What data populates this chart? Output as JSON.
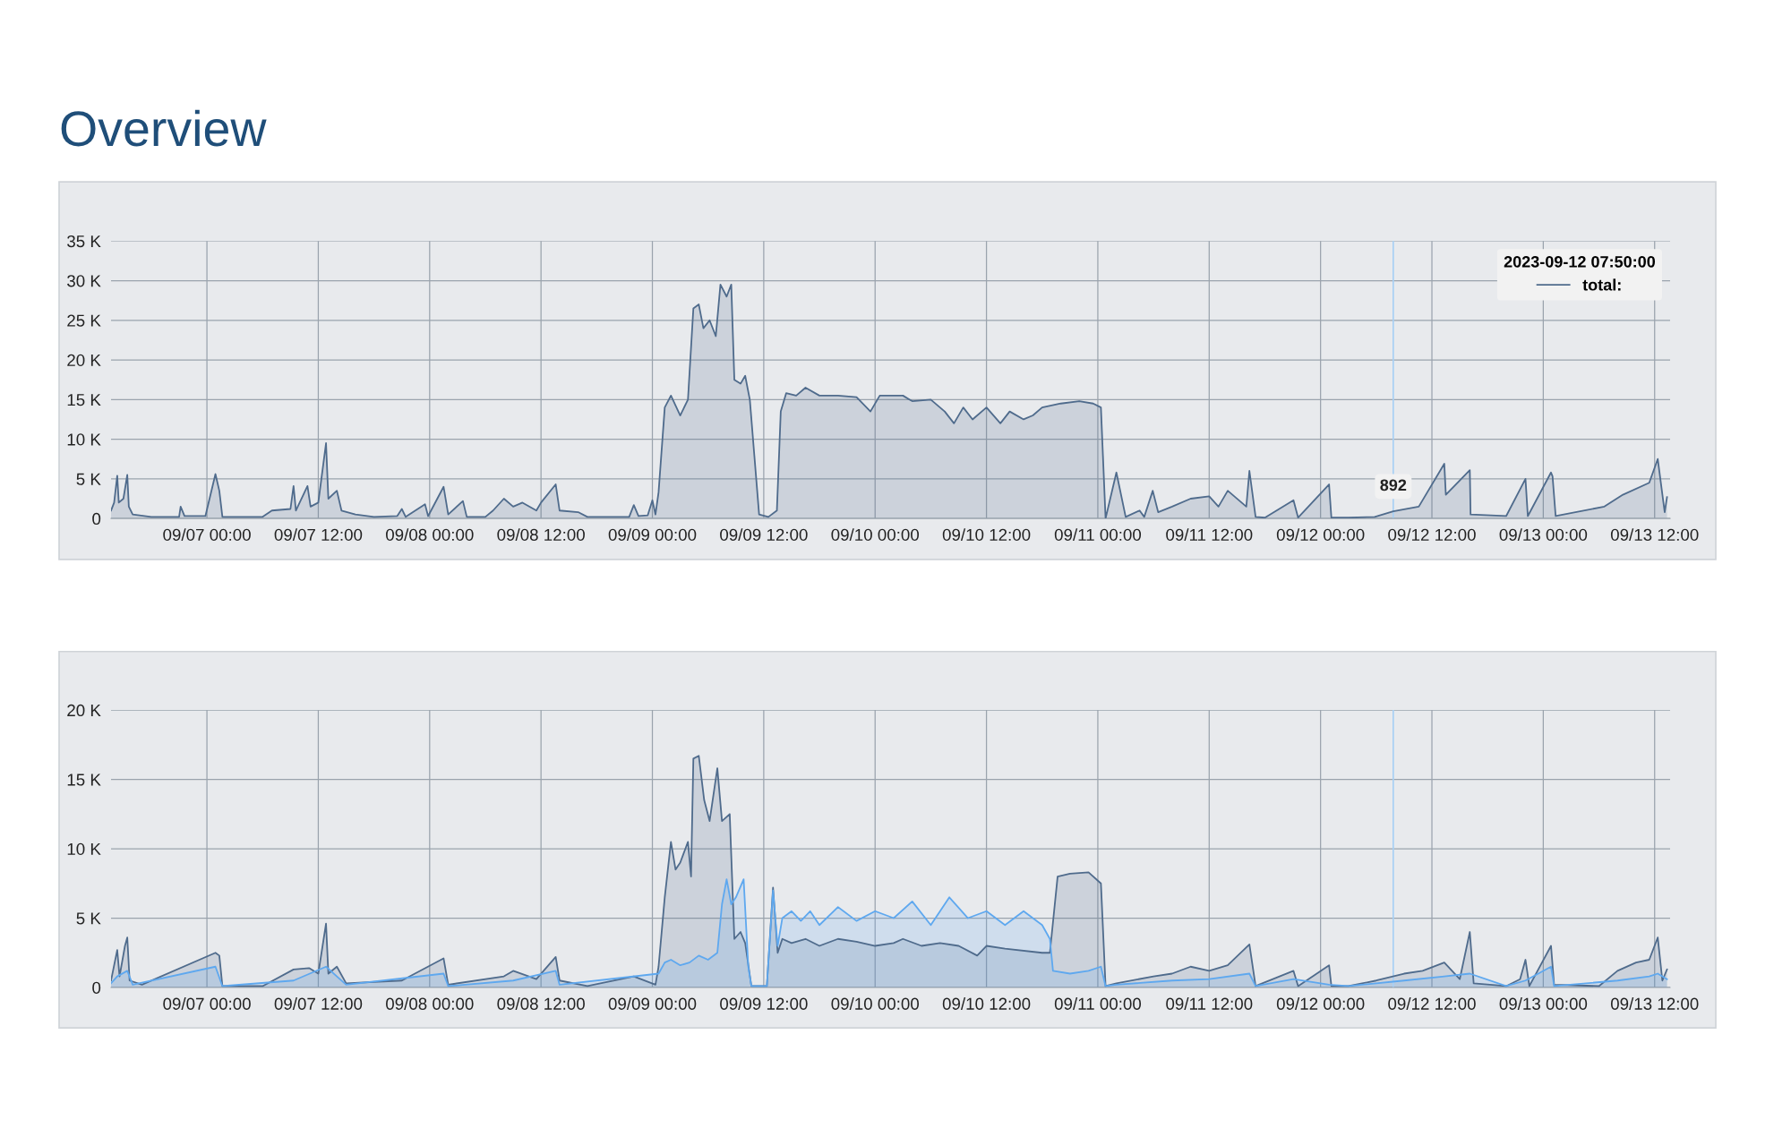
{
  "chart_data": [
    {
      "type": "area",
      "title": "Overview",
      "legend": "top right",
      "legend_title": "2023-09-12 07:50:00",
      "grid": true,
      "marker": "none",
      "xlim": [
        "2023-09-06T13:40",
        "2023-09-13T13:40"
      ],
      "ylim": [
        0,
        35000
      ],
      "xticks": [
        {
          "value": "2023-09-07T00:00",
          "label": "09/07 00:00"
        },
        {
          "value": "2023-09-07T12:00",
          "label": "09/07 12:00"
        },
        {
          "value": "2023-09-08T00:00",
          "label": "09/08 00:00"
        },
        {
          "value": "2023-09-08T12:00",
          "label": "09/08 12:00"
        },
        {
          "value": "2023-09-09T00:00",
          "label": "09/09 00:00"
        },
        {
          "value": "2023-09-09T12:00",
          "label": "09/09 12:00"
        },
        {
          "value": "2023-09-10T00:00",
          "label": "09/10 00:00"
        },
        {
          "value": "2023-09-10T12:00",
          "label": "09/10 12:00"
        },
        {
          "value": "2023-09-11T00:00",
          "label": "09/11 00:00"
        },
        {
          "value": "2023-09-11T12:00",
          "label": "09/11 12:00"
        },
        {
          "value": "2023-09-12T00:00",
          "label": "09/12 00:00"
        },
        {
          "value": "2023-09-12T12:00",
          "label": "09/12 12:00"
        },
        {
          "value": "2023-09-13T00:00",
          "label": "09/13 00:00"
        },
        {
          "value": "2023-09-13T12:00",
          "label": "09/13 12:00"
        }
      ],
      "yticks": [
        {
          "value": 0,
          "label": "0"
        },
        {
          "value": 5000,
          "label": "5 K"
        },
        {
          "value": 10000,
          "label": "10 K"
        },
        {
          "value": 15000,
          "label": "15 K"
        },
        {
          "value": 20000,
          "label": "20 K"
        },
        {
          "value": 25000,
          "label": "25 K"
        },
        {
          "value": 30000,
          "label": "30 K"
        },
        {
          "value": 35000,
          "label": "35 K"
        }
      ],
      "ref_lines": [
        {
          "axis": "x",
          "value": "2023-09-12T07:50",
          "color": "#a8d0f5"
        }
      ],
      "annotations": [
        {
          "text": "892",
          "x": "2023-09-12T07:50",
          "y": 892
        }
      ],
      "series": [
        {
          "name": "total:",
          "color": "#4f6b8c",
          "x": [
            "2023-09-06T13:40",
            "2023-09-06T14:00",
            "2023-09-06T14:20",
            "2023-09-06T14:30",
            "2023-09-06T15:00",
            "2023-09-06T15:25",
            "2023-09-06T15:35",
            "2023-09-06T16:00",
            "2023-09-06T18:00",
            "2023-09-06T21:00",
            "2023-09-06T21:10",
            "2023-09-06T21:35",
            "2023-09-06T23:50",
            "2023-09-07T00:55",
            "2023-09-07T01:20",
            "2023-09-07T01:40",
            "2023-09-07T06:00",
            "2023-09-07T07:00",
            "2023-09-07T09:00",
            "2023-09-07T09:20",
            "2023-09-07T09:35",
            "2023-09-07T10:50",
            "2023-09-07T11:10",
            "2023-09-07T12:00",
            "2023-09-07T12:50",
            "2023-09-07T13:05",
            "2023-09-07T14:00",
            "2023-09-07T14:30",
            "2023-09-07T16:00",
            "2023-09-07T18:00",
            "2023-09-07T20:30",
            "2023-09-07T21:00",
            "2023-09-07T21:25",
            "2023-09-07T23:30",
            "2023-09-07T23:50",
            "2023-09-08T01:30",
            "2023-09-08T02:00",
            "2023-09-08T03:35",
            "2023-09-08T04:00",
            "2023-09-08T06:00",
            "2023-09-08T06:50",
            "2023-09-08T08:00",
            "2023-09-08T09:00",
            "2023-09-08T10:00",
            "2023-09-08T11:30",
            "2023-09-08T12:00",
            "2023-09-08T13:35",
            "2023-09-08T14:00",
            "2023-09-08T16:00",
            "2023-09-08T17:00",
            "2023-09-08T21:30",
            "2023-09-08T22:00",
            "2023-09-08T22:30",
            "2023-09-08T23:30",
            "2023-09-09T00:00",
            "2023-09-09T00:20",
            "2023-09-09T00:40",
            "2023-09-09T01:20",
            "2023-09-09T02:00",
            "2023-09-09T03:00",
            "2023-09-09T03:50",
            "2023-09-09T04:25",
            "2023-09-09T05:00",
            "2023-09-09T05:30",
            "2023-09-09T06:10",
            "2023-09-09T06:50",
            "2023-09-09T07:20",
            "2023-09-09T08:00",
            "2023-09-09T08:30",
            "2023-09-09T08:50",
            "2023-09-09T09:30",
            "2023-09-09T10:00",
            "2023-09-09T10:30",
            "2023-09-09T11:30",
            "2023-09-09T12:30",
            "2023-09-09T13:25",
            "2023-09-09T13:50",
            "2023-09-09T14:25",
            "2023-09-09T15:30",
            "2023-09-09T16:30",
            "2023-09-09T18:00",
            "2023-09-09T20:00",
            "2023-09-09T22:00",
            "2023-09-09T23:30",
            "2023-09-10T00:30",
            "2023-09-10T03:00",
            "2023-09-10T04:00",
            "2023-09-10T06:00",
            "2023-09-10T07:30",
            "2023-09-10T08:30",
            "2023-09-10T09:30",
            "2023-09-10T10:30",
            "2023-09-10T12:00",
            "2023-09-10T13:30",
            "2023-09-10T14:30",
            "2023-09-10T16:00",
            "2023-09-10T17:00",
            "2023-09-10T18:00",
            "2023-09-10T20:00",
            "2023-09-10T22:00",
            "2023-09-10T23:30",
            "2023-09-11T00:20",
            "2023-09-11T00:50",
            "2023-09-11T02:00",
            "2023-09-11T03:00",
            "2023-09-11T04:30",
            "2023-09-11T05:00",
            "2023-09-11T05:55",
            "2023-09-11T06:30",
            "2023-09-11T08:00",
            "2023-09-11T10:00",
            "2023-09-11T12:00",
            "2023-09-11T13:00",
            "2023-09-11T14:00",
            "2023-09-11T16:00",
            "2023-09-11T16:20",
            "2023-09-11T17:00",
            "2023-09-11T18:00",
            "2023-09-11T21:05",
            "2023-09-11T21:35",
            "2023-09-12T00:55",
            "2023-09-12T01:10",
            "2023-09-12T03:00",
            "2023-09-12T05:50",
            "2023-09-12T07:50",
            "2023-09-12T10:35",
            "2023-09-12T13:20",
            "2023-09-12T13:30",
            "2023-09-12T16:05",
            "2023-09-12T16:10",
            "2023-09-12T20:00",
            "2023-09-12T22:05",
            "2023-09-12T22:20",
            "2023-09-13T00:50",
            "2023-09-13T01:00",
            "2023-09-13T01:20",
            "2023-09-13T06:35",
            "2023-09-13T08:35",
            "2023-09-13T11:25",
            "2023-09-13T12:20",
            "2023-09-13T13:05",
            "2023-09-13T13:20"
          ],
          "values": [
            1000,
            2000,
            5400,
            2000,
            2500,
            5500,
            1500,
            500,
            200,
            200,
            1500,
            300,
            300,
            5600,
            3500,
            200,
            200,
            1000,
            1200,
            4100,
            1000,
            4100,
            1500,
            2000,
            9500,
            2500,
            3500,
            1000,
            500,
            200,
            300,
            1200,
            200,
            1800,
            300,
            4000,
            500,
            2200,
            200,
            200,
            1000,
            2500,
            1500,
            2000,
            1000,
            2000,
            4300,
            1000,
            800,
            200,
            200,
            1700,
            300,
            400,
            2300,
            500,
            3300,
            14000,
            15500,
            13000,
            15000,
            26500,
            27000,
            24000,
            25000,
            23000,
            29500,
            28000,
            29500,
            17500,
            17000,
            18000,
            15000,
            500,
            200,
            1000,
            13500,
            15800,
            15500,
            16500,
            15500,
            15500,
            15300,
            13500,
            15500,
            15500,
            14800,
            15000,
            13500,
            12000,
            14000,
            12500,
            14000,
            12000,
            13500,
            12500,
            13000,
            14000,
            14500,
            14800,
            14500,
            14000,
            0,
            5800,
            200,
            1000,
            200,
            3500,
            800,
            1500,
            2500,
            2800,
            1500,
            3500,
            1500,
            6000,
            200,
            100,
            2300,
            100,
            4300,
            100,
            100,
            200,
            892,
            1500,
            6900,
            3000,
            6100,
            500,
            300,
            5000,
            300,
            5800,
            5300,
            300,
            1500,
            3000,
            4500,
            7500,
            800,
            2700
          ]
        }
      ]
    },
    {
      "type": "area",
      "grid": true,
      "marker": "none",
      "xlim": [
        "2023-09-06T13:40",
        "2023-09-13T13:40"
      ],
      "ylim": [
        0,
        20000
      ],
      "xticks": [
        {
          "value": "2023-09-07T00:00",
          "label": "09/07 00:00"
        },
        {
          "value": "2023-09-07T12:00",
          "label": "09/07 12:00"
        },
        {
          "value": "2023-09-08T00:00",
          "label": "09/08 00:00"
        },
        {
          "value": "2023-09-08T12:00",
          "label": "09/08 12:00"
        },
        {
          "value": "2023-09-09T00:00",
          "label": "09/09 00:00"
        },
        {
          "value": "2023-09-09T12:00",
          "label": "09/09 12:00"
        },
        {
          "value": "2023-09-10T00:00",
          "label": "09/10 00:00"
        },
        {
          "value": "2023-09-10T12:00",
          "label": "09/10 12:00"
        },
        {
          "value": "2023-09-11T00:00",
          "label": "09/11 00:00"
        },
        {
          "value": "2023-09-11T12:00",
          "label": "09/11 12:00"
        },
        {
          "value": "2023-09-12T00:00",
          "label": "09/12 00:00"
        },
        {
          "value": "2023-09-12T12:00",
          "label": "09/12 12:00"
        },
        {
          "value": "2023-09-13T00:00",
          "label": "09/13 00:00"
        },
        {
          "value": "2023-09-13T12:00",
          "label": "09/13 12:00"
        }
      ],
      "yticks": [
        {
          "value": 0,
          "label": "0"
        },
        {
          "value": 5000,
          "label": "5 K"
        },
        {
          "value": 10000,
          "label": "10 K"
        },
        {
          "value": 15000,
          "label": "15 K"
        },
        {
          "value": 20000,
          "label": "20 K"
        }
      ],
      "ref_lines": [
        {
          "axis": "x",
          "value": "2023-09-12T07:50",
          "color": "#a8d0f5"
        }
      ],
      "series": [
        {
          "color": "#4f6b8c",
          "x": [
            "2023-09-06T13:40",
            "2023-09-06T14:20",
            "2023-09-06T14:35",
            "2023-09-06T15:10",
            "2023-09-06T15:25",
            "2023-09-06T15:40",
            "2023-09-06T17:00",
            "2023-09-07T00:55",
            "2023-09-07T01:20",
            "2023-09-07T01:40",
            "2023-09-07T06:00",
            "2023-09-07T09:20",
            "2023-09-07T11:00",
            "2023-09-07T12:00",
            "2023-09-07T12:50",
            "2023-09-07T13:05",
            "2023-09-07T14:00",
            "2023-09-07T15:00",
            "2023-09-07T21:00",
            "2023-09-08T01:30",
            "2023-09-08T02:00",
            "2023-09-08T08:00",
            "2023-09-08T09:00",
            "2023-09-08T11:30",
            "2023-09-08T13:35",
            "2023-09-08T14:00",
            "2023-09-08T17:00",
            "2023-09-08T22:00",
            "2023-09-09T00:20",
            "2023-09-09T00:40",
            "2023-09-09T01:20",
            "2023-09-09T02:00",
            "2023-09-09T02:30",
            "2023-09-09T03:00",
            "2023-09-09T03:50",
            "2023-09-09T04:10",
            "2023-09-09T04:25",
            "2023-09-09T05:00",
            "2023-09-09T05:35",
            "2023-09-09T06:10",
            "2023-09-09T07:00",
            "2023-09-09T07:30",
            "2023-09-09T08:20",
            "2023-09-09T08:50",
            "2023-09-09T09:30",
            "2023-09-09T10:00",
            "2023-09-09T10:40",
            "2023-09-09T12:20",
            "2023-09-09T13:00",
            "2023-09-09T13:30",
            "2023-09-09T14:00",
            "2023-09-09T15:00",
            "2023-09-09T16:30",
            "2023-09-09T18:00",
            "2023-09-09T20:00",
            "2023-09-09T22:00",
            "2023-09-10T00:00",
            "2023-09-10T02:00",
            "2023-09-10T03:00",
            "2023-09-10T05:00",
            "2023-09-10T07:00",
            "2023-09-10T09:00",
            "2023-09-10T11:00",
            "2023-09-10T12:00",
            "2023-09-10T14:00",
            "2023-09-10T18:00",
            "2023-09-10T18:50",
            "2023-09-10T19:40",
            "2023-09-10T21:00",
            "2023-09-10T23:00",
            "2023-09-11T00:20",
            "2023-09-11T00:50",
            "2023-09-11T02:00",
            "2023-09-11T06:00",
            "2023-09-11T08:00",
            "2023-09-11T10:00",
            "2023-09-11T12:00",
            "2023-09-11T14:00",
            "2023-09-11T16:20",
            "2023-09-11T17:00",
            "2023-09-11T21:05",
            "2023-09-11T21:35",
            "2023-09-12T00:55",
            "2023-09-12T01:10",
            "2023-09-12T03:00",
            "2023-09-12T06:00",
            "2023-09-12T09:00",
            "2023-09-12T11:00",
            "2023-09-12T13:20",
            "2023-09-12T15:00",
            "2023-09-12T16:05",
            "2023-09-12T16:30",
            "2023-09-12T20:00",
            "2023-09-12T21:30",
            "2023-09-12T22:05",
            "2023-09-12T22:30",
            "2023-09-13T00:50",
            "2023-09-13T01:10",
            "2023-09-13T06:00",
            "2023-09-13T08:00",
            "2023-09-13T10:00",
            "2023-09-13T11:25",
            "2023-09-13T12:20",
            "2023-09-13T12:50",
            "2023-09-13T13:20"
          ],
          "values": [
            500,
            2700,
            800,
            3000,
            3600,
            500,
            200,
            2500,
            2300,
            100,
            100,
            1300,
            1400,
            1000,
            4600,
            1000,
            1500,
            300,
            500,
            2100,
            200,
            800,
            1200,
            600,
            2200,
            500,
            100,
            800,
            200,
            1500,
            6500,
            10500,
            8500,
            9000,
            10500,
            8000,
            16500,
            16700,
            13500,
            12000,
            15800,
            12000,
            12500,
            3500,
            4000,
            3200,
            100,
            100,
            7200,
            2500,
            3500,
            3200,
            3500,
            3000,
            3500,
            3300,
            3000,
            3200,
            3500,
            3000,
            3200,
            3000,
            2300,
            3000,
            2800,
            2500,
            2500,
            8000,
            8200,
            8300,
            7500,
            100,
            300,
            800,
            1000,
            1500,
            1200,
            1600,
            3100,
            100,
            1200,
            100,
            1600,
            100,
            100,
            500,
            1000,
            1200,
            1800,
            600,
            4000,
            300,
            100,
            600,
            2000,
            100,
            3000,
            200,
            100,
            1200,
            1800,
            2000,
            3600,
            500,
            1300
          ]
        },
        {
          "color": "#5ea8ef",
          "x": [
            "2023-09-06T13:40",
            "2023-09-06T14:20",
            "2023-09-06T15:25",
            "2023-09-06T16:00",
            "2023-09-07T00:55",
            "2023-09-07T01:40",
            "2023-09-07T09:20",
            "2023-09-07T12:50",
            "2023-09-07T14:00",
            "2023-09-07T15:00",
            "2023-09-08T01:30",
            "2023-09-08T02:00",
            "2023-09-08T09:00",
            "2023-09-08T13:35",
            "2023-09-08T14:00",
            "2023-09-09T00:40",
            "2023-09-09T01:20",
            "2023-09-09T02:00",
            "2023-09-09T03:00",
            "2023-09-09T04:00",
            "2023-09-09T05:00",
            "2023-09-09T06:00",
            "2023-09-09T07:00",
            "2023-09-09T07:30",
            "2023-09-09T08:00",
            "2023-09-09T08:30",
            "2023-09-09T09:00",
            "2023-09-09T09:50",
            "2023-09-09T10:20",
            "2023-09-09T10:40",
            "2023-09-09T12:20",
            "2023-09-09T13:00",
            "2023-09-09T13:30",
            "2023-09-09T14:00",
            "2023-09-09T15:00",
            "2023-09-09T16:00",
            "2023-09-09T17:00",
            "2023-09-09T18:00",
            "2023-09-09T20:00",
            "2023-09-09T22:00",
            "2023-09-10T00:00",
            "2023-09-10T02:00",
            "2023-09-10T04:00",
            "2023-09-10T06:00",
            "2023-09-10T08:00",
            "2023-09-10T10:00",
            "2023-09-10T12:00",
            "2023-09-10T14:00",
            "2023-09-10T16:00",
            "2023-09-10T18:00",
            "2023-09-10T18:50",
            "2023-09-10T19:10",
            "2023-09-10T21:00",
            "2023-09-10T23:00",
            "2023-09-11T00:20",
            "2023-09-11T00:50",
            "2023-09-11T02:00",
            "2023-09-11T08:00",
            "2023-09-11T12:00",
            "2023-09-11T16:20",
            "2023-09-11T17:00",
            "2023-09-11T21:05",
            "2023-09-12T00:55",
            "2023-09-12T03:00",
            "2023-09-12T09:00",
            "2023-09-12T13:20",
            "2023-09-12T16:05",
            "2023-09-12T20:00",
            "2023-09-12T22:05",
            "2023-09-13T00:50",
            "2023-09-13T01:10",
            "2023-09-13T08:00",
            "2023-09-13T11:25",
            "2023-09-13T12:20",
            "2023-09-13T13:20"
          ],
          "values": [
            300,
            800,
            1200,
            200,
            1500,
            100,
            500,
            1500,
            800,
            200,
            1000,
            100,
            500,
            1200,
            200,
            1000,
            1800,
            2000,
            1600,
            1800,
            2300,
            2000,
            2500,
            6000,
            7800,
            6000,
            6500,
            7800,
            1500,
            100,
            100,
            7000,
            3000,
            5000,
            5500,
            4800,
            5500,
            4500,
            5800,
            4800,
            5500,
            5000,
            6200,
            4500,
            6500,
            5000,
            5500,
            4500,
            5500,
            4500,
            3500,
            1200,
            1000,
            1200,
            1500,
            100,
            200,
            500,
            600,
            1000,
            100,
            600,
            200,
            100,
            500,
            800,
            1000,
            100,
            500,
            1500,
            100,
            500,
            800,
            1000,
            600
          ]
        }
      ]
    }
  ]
}
